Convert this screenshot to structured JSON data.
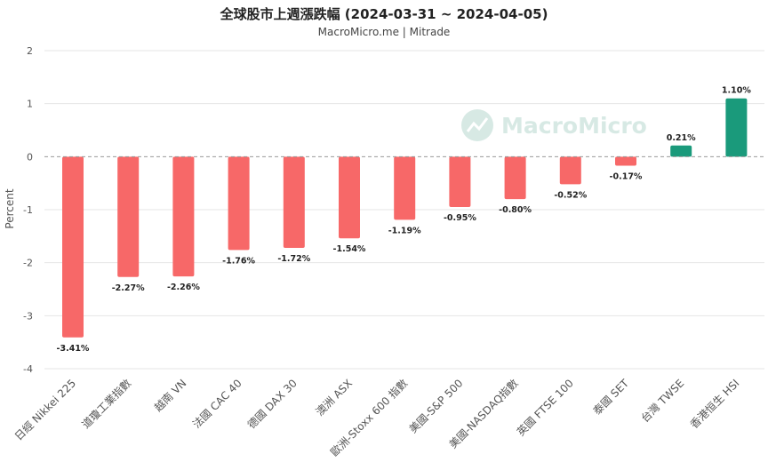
{
  "chart_data": {
    "type": "bar",
    "title": "全球股市上週漲跌幅 (2024-03-31 ~ 2024-04-05)",
    "subtitle": "MacroMicro.me | Mitrade",
    "ylabel": "Percent",
    "ylim": [
      -4,
      2
    ],
    "yticks": [
      2,
      1,
      0,
      -1,
      -2,
      -3,
      -4
    ],
    "grid": true,
    "categories": [
      "日經 Nikkei 225",
      "道瓊工業指數",
      "越南 VN",
      "法國 CAC 40",
      "德國 DAX 30",
      "澳洲 ASX",
      "歐洲-Stoxx 600 指數",
      "美國-S&P 500",
      "美國-NASDAQ指數",
      "英國 FTSE 100",
      "泰國 SET",
      "台灣 TWSE",
      "香港恒生 HSI"
    ],
    "values": [
      -3.41,
      -2.27,
      -2.26,
      -1.76,
      -1.72,
      -1.54,
      -1.19,
      -0.95,
      -0.8,
      -0.52,
      -0.17,
      0.21,
      1.1
    ],
    "data_labels": [
      "-3.41%",
      "-2.27%",
      "-2.26%",
      "-1.76%",
      "-1.72%",
      "-1.54%",
      "-1.19%",
      "-0.95%",
      "-0.80%",
      "-0.52%",
      "-0.17%",
      "0.21%",
      "1.10%"
    ],
    "colors": {
      "negative": "#f76868",
      "positive": "#1a9a7b"
    },
    "watermark": "MacroMicro"
  }
}
